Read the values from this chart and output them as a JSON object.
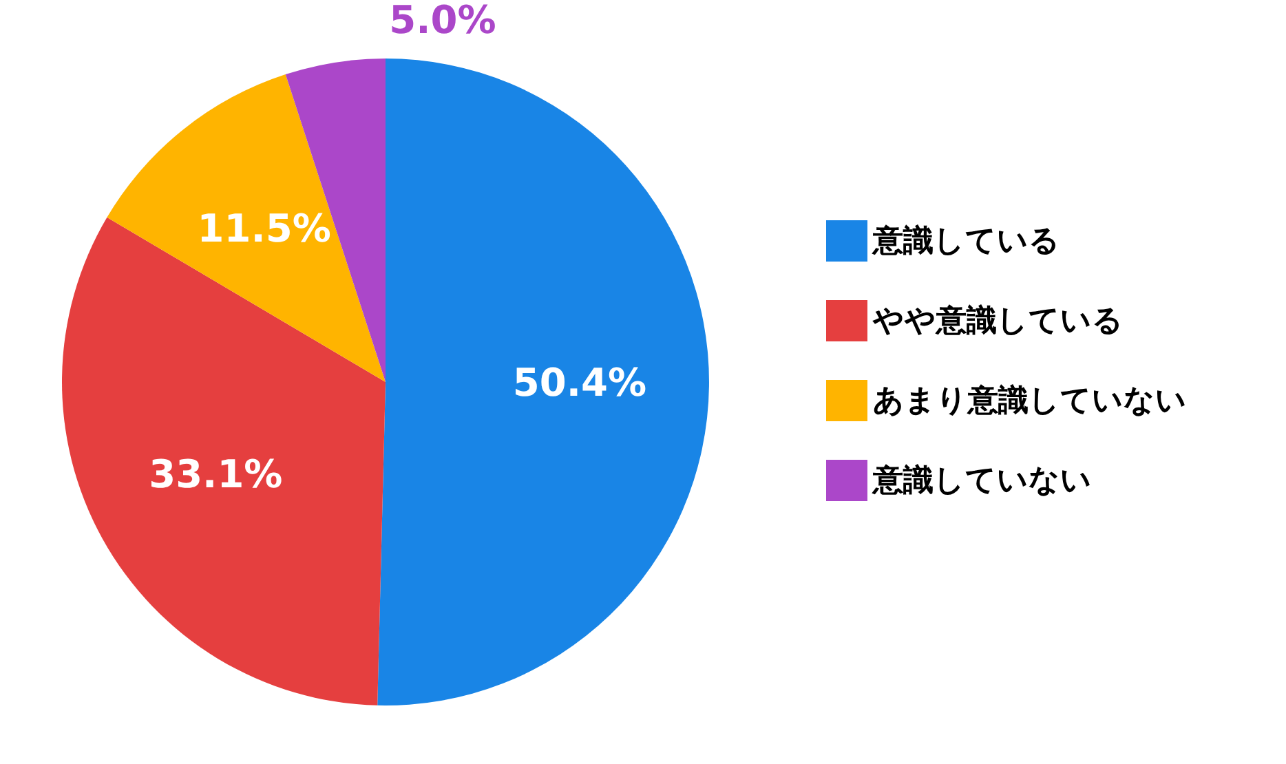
{
  "chart_data": {
    "type": "pie",
    "categories": [
      "意識している",
      "やや意識している",
      "あまり意識していない",
      "意識していない"
    ],
    "values": [
      50.4,
      33.1,
      11.5,
      5.0
    ],
    "colors": [
      "#1985e6",
      "#e53f3f",
      "#ffb400",
      "#ab47c9"
    ],
    "value_labels": [
      "50.4%",
      "33.1%",
      "11.5%",
      "5.0%"
    ],
    "legend": "right"
  }
}
